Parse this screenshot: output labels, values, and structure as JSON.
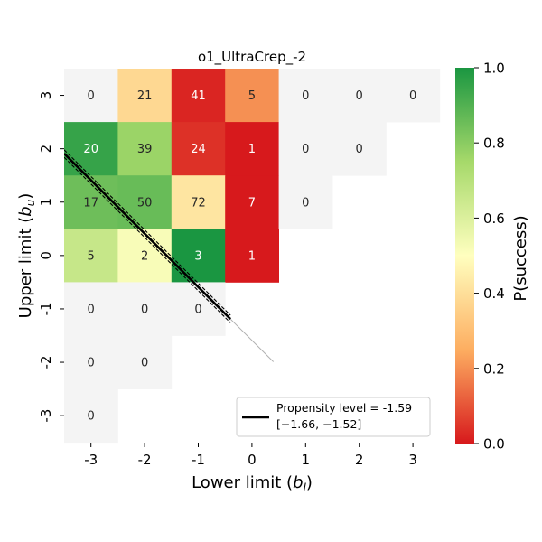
{
  "chart_data": {
    "type": "heatmap",
    "title": "o1_UltraCrep_-2",
    "xlabel": "Lower limit (b_l)",
    "ylabel": "Upper limit (b_u)",
    "x_categories": [
      "-3",
      "-2",
      "-1",
      "0",
      "1",
      "2",
      "3"
    ],
    "y_categories": [
      "3",
      "2",
      "1",
      "0",
      "-1",
      "-2",
      "-3"
    ],
    "x_values": [
      -3,
      -2,
      -1,
      0,
      1,
      2,
      3
    ],
    "y_values": [
      3,
      2,
      1,
      0,
      -1,
      -2,
      -3
    ],
    "cells": [
      {
        "bl": -3,
        "bu": 3,
        "count": "0",
        "p": null
      },
      {
        "bl": -2,
        "bu": 3,
        "count": "21",
        "p": 0.38
      },
      {
        "bl": -1,
        "bu": 3,
        "count": "41",
        "p": 0.02
      },
      {
        "bl": 0,
        "bu": 3,
        "count": "5",
        "p": 0.2
      },
      {
        "bl": 1,
        "bu": 3,
        "count": "0",
        "p": null
      },
      {
        "bl": 2,
        "bu": 3,
        "count": "0",
        "p": null
      },
      {
        "bl": 3,
        "bu": 3,
        "count": "0",
        "p": null
      },
      {
        "bl": -3,
        "bu": 2,
        "count": "20",
        "p": 0.95
      },
      {
        "bl": -2,
        "bu": 2,
        "count": "39",
        "p": 0.77
      },
      {
        "bl": -1,
        "bu": 2,
        "count": "24",
        "p": 0.04
      },
      {
        "bl": 0,
        "bu": 2,
        "count": "1",
        "p": 0.0
      },
      {
        "bl": 1,
        "bu": 2,
        "count": "0",
        "p": null
      },
      {
        "bl": 2,
        "bu": 2,
        "count": "0",
        "p": null
      },
      {
        "bl": -3,
        "bu": 1,
        "count": "17",
        "p": 0.85
      },
      {
        "bl": -2,
        "bu": 1,
        "count": "50",
        "p": 0.86
      },
      {
        "bl": -1,
        "bu": 1,
        "count": "72",
        "p": 0.42
      },
      {
        "bl": 0,
        "bu": 1,
        "count": "7",
        "p": 0.0
      },
      {
        "bl": 1,
        "bu": 1,
        "count": "0",
        "p": null
      },
      {
        "bl": -3,
        "bu": 0,
        "count": "5",
        "p": 0.66
      },
      {
        "bl": -2,
        "bu": 0,
        "count": "2",
        "p": 0.52
      },
      {
        "bl": -1,
        "bu": 0,
        "count": "3",
        "p": 1.0
      },
      {
        "bl": 0,
        "bu": 0,
        "count": "1",
        "p": 0.0
      },
      {
        "bl": -3,
        "bu": -1,
        "count": "0",
        "p": null
      },
      {
        "bl": -2,
        "bu": -1,
        "count": "0",
        "p": null
      },
      {
        "bl": -1,
        "bu": -1,
        "count": "0",
        "p": null
      },
      {
        "bl": -3,
        "bu": -2,
        "count": "0",
        "p": null
      },
      {
        "bl": -2,
        "bu": -2,
        "count": "0",
        "p": null
      },
      {
        "bl": -3,
        "bu": -3,
        "count": "0",
        "p": null
      }
    ],
    "propensity_line": {
      "level": -1.59,
      "ci": [
        -1.66,
        -1.52
      ],
      "bl_range": [
        -3.5,
        -0.4
      ],
      "legend_line1": "Propensity level = -1.59",
      "legend_line2": "[−1.66, −1.52]"
    },
    "colorbar": {
      "label": "P(success)",
      "min": 0.0,
      "max": 1.0,
      "ticks": [
        "0.0",
        "0.2",
        "0.4",
        "0.6",
        "0.8",
        "1.0"
      ],
      "tick_values": [
        0.0,
        0.2,
        0.4,
        0.6,
        0.8,
        1.0
      ],
      "colormap": "RdYlGn",
      "colors": [
        "#d7191c",
        "#fdae61",
        "#ffffbf",
        "#a6d96a",
        "#1a9641"
      ]
    },
    "empty_cell_color": "#f4f4f4",
    "legend_position": "lower right"
  }
}
